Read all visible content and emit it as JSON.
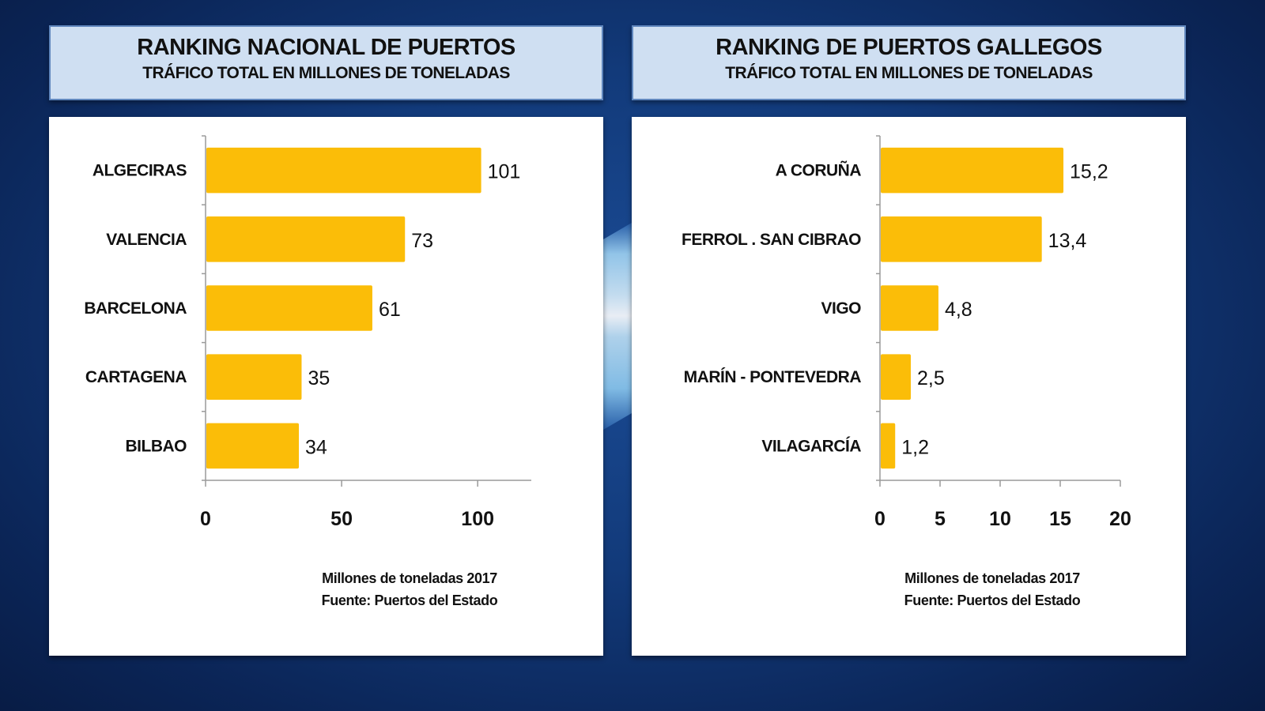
{
  "colors": {
    "bar": "#fbbd08",
    "axis": "#9a9a9a",
    "header_bg": "#cfdff2",
    "background": "#123a7a"
  },
  "left": {
    "title": "RANKING NACIONAL DE PUERTOS",
    "subtitle": "TRÁFICO TOTAL EN MILLONES DE TONELADAS",
    "note_line1": "Millones de toneladas 2017",
    "note_line2": "Fuente: Puertos del Estado"
  },
  "right": {
    "title": "RANKING DE PUERTOS GALLEGOS",
    "subtitle": "TRÁFICO TOTAL EN MILLONES DE TONELADAS",
    "note_line1": "Millones de toneladas 2017",
    "note_line2": "Fuente: Puertos del Estado"
  },
  "chart_data": [
    {
      "type": "bar",
      "orientation": "horizontal",
      "title": "RANKING NACIONAL DE PUERTOS",
      "subtitle": "TRÁFICO TOTAL EN MILLONES DE TONELADAS",
      "categories": [
        "ALGECIRAS",
        "VALENCIA",
        "BARCELONA",
        "CARTAGENA",
        "BILBAO"
      ],
      "values": [
        101,
        73,
        61,
        35,
        34
      ],
      "value_labels": [
        "101",
        "73",
        "61",
        "35",
        "34"
      ],
      "xticks": [
        0,
        50,
        100
      ],
      "xtick_labels": [
        "0",
        "50",
        "100"
      ],
      "xlim": [
        0,
        120
      ],
      "xlabel": "",
      "ylabel": "",
      "grid": false,
      "legend": "none"
    },
    {
      "type": "bar",
      "orientation": "horizontal",
      "title": "RANKING DE PUERTOS GALLEGOS",
      "subtitle": "TRÁFICO TOTAL EN MILLONES DE TONELADAS",
      "categories": [
        "A CORUÑA",
        "FERROL . SAN CIBRAO",
        "VIGO",
        "MARÍN - PONTEVEDRA",
        "VILAGARCÍA"
      ],
      "values": [
        15.2,
        13.4,
        4.8,
        2.5,
        1.2
      ],
      "value_labels": [
        "15,2",
        "13,4",
        "4,8",
        "2,5",
        "1,2"
      ],
      "xticks": [
        0,
        5,
        10,
        15,
        20
      ],
      "xtick_labels": [
        "0",
        "5",
        "10",
        "15",
        "20"
      ],
      "xlim": [
        0,
        20
      ],
      "xlabel": "",
      "ylabel": "",
      "grid": false,
      "legend": "none"
    }
  ]
}
